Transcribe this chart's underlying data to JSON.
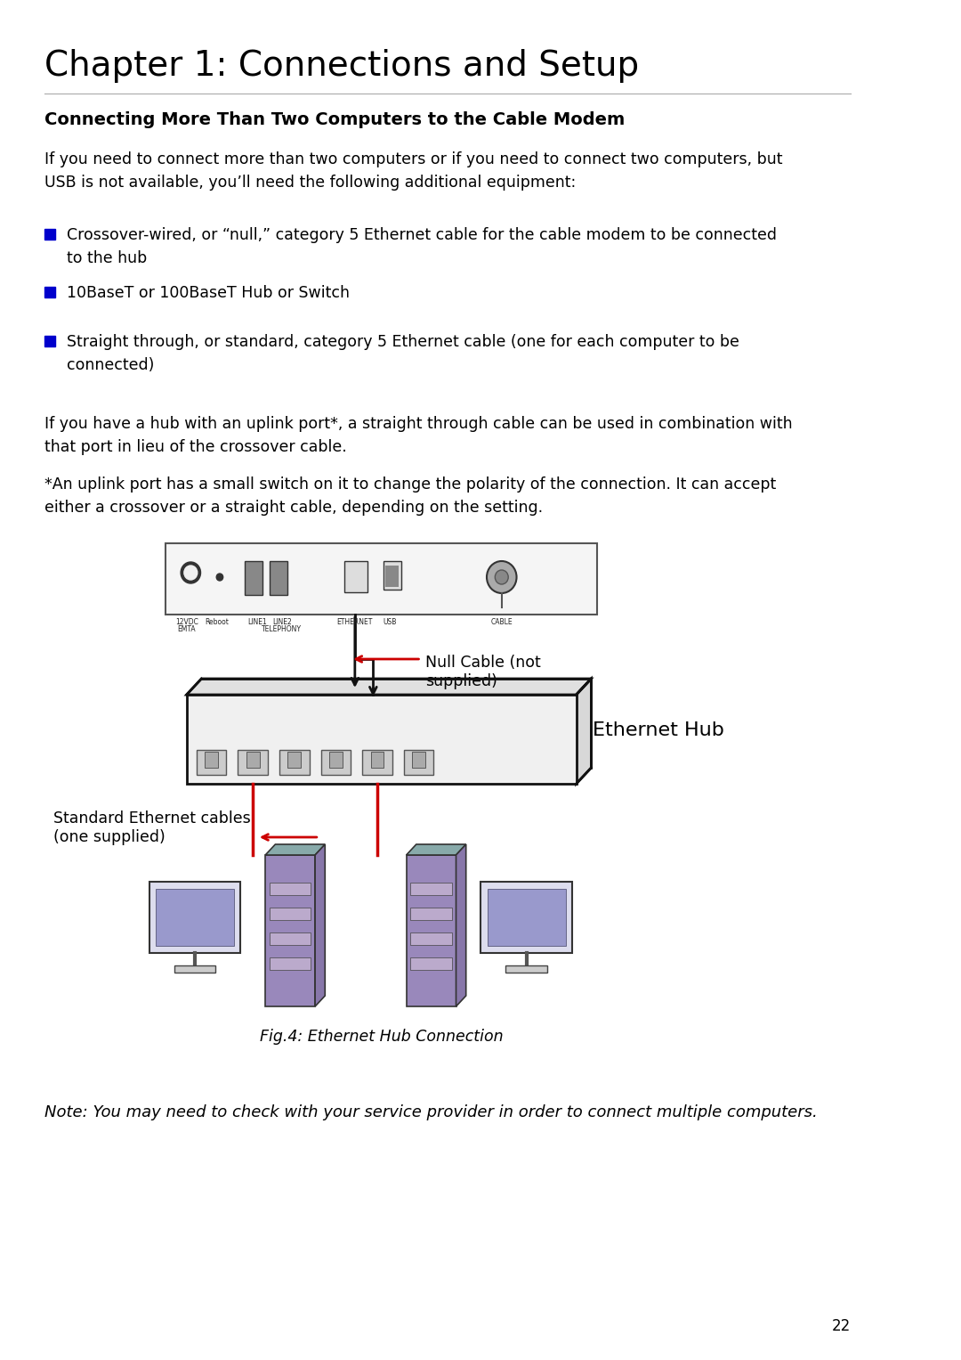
{
  "bg_color": "#ffffff",
  "page_width": 10.8,
  "page_height": 15.27,
  "chapter_title": "Chapter 1: Connections and Setup",
  "section_title": "Connecting More Than Two Computers to the Cable Modem",
  "para1": "If you need to connect more than two computers or if you need to connect two computers, but\nUSB is not available, you’ll need the following additional equipment:",
  "bullets": [
    "Crossover-wired, or “null,” category 5 Ethernet cable for the cable modem to be connected\nto the hub",
    "10BaseT or 100BaseT Hub or Switch",
    "Straight through, or standard, category 5 Ethernet cable (one for each computer to be\nconnected)"
  ],
  "para2": "If you have a hub with an uplink port*, a straight through cable can be used in combination with\nthat port in lieu of the crossover cable.",
  "para3": "*An uplink port has a small switch on it to change the polarity of the connection. It can accept\neither a crossover or a straight cable, depending on the setting.",
  "fig_caption": "Fig.4: Ethernet Hub Connection",
  "note_text": "Note: You may need to check with your service provider in order to connect multiple computers.",
  "page_num": "22",
  "label_null_cable": "Null Cable (not\nsupplied)",
  "label_eth_hub": "Ethernet Hub",
  "label_std_cables": "Standard Ethernet cables\n(one supplied)",
  "bullet_color": "#0000cc",
  "text_color": "#000000",
  "modem_border_color": "#555555",
  "hub_border_color": "#111111",
  "cable_color_black": "#111111",
  "cable_color_red": "#cc0000",
  "arrow_red": "#cc0000",
  "arrow_black": "#111111",
  "hub_fill": "#f0f0f0",
  "modem_fill": "#f5f5f5",
  "port_fill": "#cccccc",
  "tower_fill_purple": "#9988bb",
  "tower_fill_teal": "#88aaaa",
  "monitor_fill": "#9999cc",
  "monitor_bg": "#e8e8ee"
}
